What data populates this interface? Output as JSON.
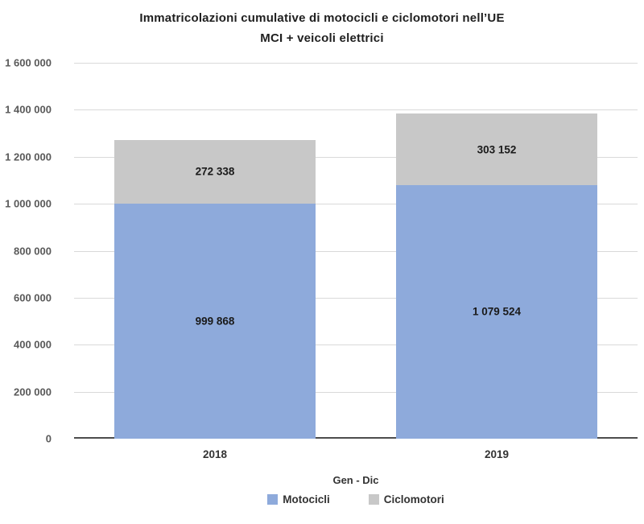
{
  "chart_data": {
    "type": "bar",
    "stacked": true,
    "title_lines": [
      "Immatricolazioni cumulative di motocicli e ciclomotori nell’UE",
      "MCI + veicoli elettrici"
    ],
    "xlabel": "Gen - Dic",
    "ylabel": "",
    "categories": [
      "2018",
      "2019"
    ],
    "series": [
      {
        "name": "Motocicli",
        "color": "#8EAADB",
        "values": [
          999868,
          1079524
        ],
        "value_labels": [
          "999 868",
          "1 079 524"
        ]
      },
      {
        "name": "Ciclomotori",
        "color": "#C8C8C8",
        "values": [
          272338,
          303152
        ],
        "value_labels": [
          "272 338",
          "303 152"
        ]
      }
    ],
    "ylim": [
      0,
      1600000
    ],
    "ytick_step": 200000,
    "ytick_labels": [
      "0",
      "200 000",
      "400 000",
      "600 000",
      "800 000",
      "1 000 000",
      "1 200 000",
      "1 400 000",
      "1 600 000"
    ],
    "grid": true,
    "legend_position": "bottom"
  }
}
